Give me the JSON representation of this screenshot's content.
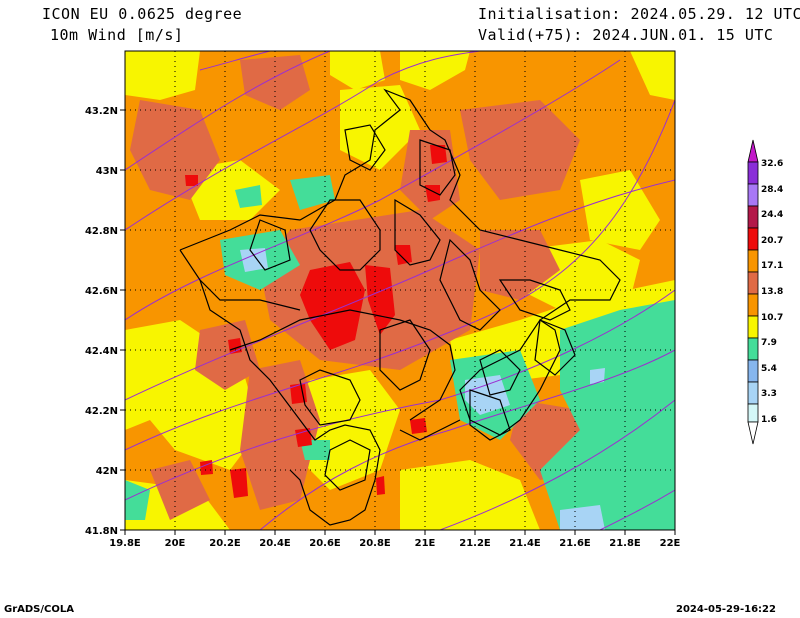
{
  "header": {
    "model": "ICON EU 0.0625 degree",
    "variable": "10m Wind [m/s]",
    "init": "Initialisation: 2024.05.29. 12 UTC",
    "valid": "Valid(+75): 2024.JUN.01. 15 UTC"
  },
  "footer": {
    "left": "GrADS/COLA",
    "right": "2024-05-29-16:22"
  },
  "axes": {
    "lat_labels": [
      "43.2N",
      "43N",
      "42.8N",
      "42.6N",
      "42.4N",
      "42.2N",
      "42N",
      "41.8N"
    ],
    "lon_labels": [
      "19.8E",
      "20E",
      "20.2E",
      "20.4E",
      "20.6E",
      "20.8E",
      "21E",
      "21.2E",
      "21.4E",
      "21.6E",
      "21.8E",
      "22E"
    ]
  },
  "colorbar": {
    "levels": [
      "32.6",
      "28.4",
      "24.4",
      "20.7",
      "17.1",
      "13.8",
      "10.7",
      "7.9",
      "5.4",
      "3.3",
      "1.6"
    ],
    "colors": {
      "c1": "#d4f7f7",
      "c2": "#a8d4f5",
      "c3": "#86b6ee",
      "c4": "#44dd99",
      "c5": "#f8f500",
      "c6": "#f89500",
      "c7": "#e06a45",
      "c8": "#ee0b0b",
      "c9": "#b31849",
      "c10": "#a878f5",
      "c11": "#8a2ed8",
      "c12": "#c21ac9"
    }
  }
}
